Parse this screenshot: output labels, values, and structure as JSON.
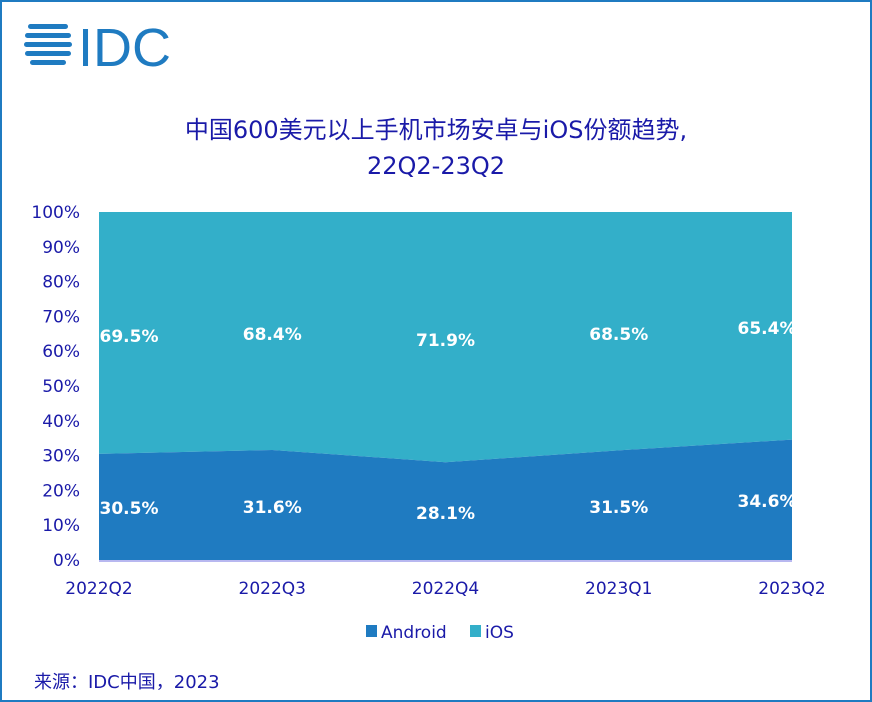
{
  "logo": "IDC",
  "colors": {
    "android": "#1f7bc1",
    "ios": "#33afc9",
    "text": "#1a1aa8",
    "border": "#1f7bc1"
  },
  "chart_data": {
    "type": "area",
    "stacked": true,
    "title_line1": "中国600美元以上手机市场安卓与iOS份额趋势,",
    "title_line2": "22Q2-23Q2",
    "categories": [
      "2022Q2",
      "2022Q3",
      "2022Q4",
      "2023Q1",
      "2023Q2"
    ],
    "series": [
      {
        "name": "Android",
        "values": [
          30.5,
          31.6,
          28.1,
          31.5,
          34.6
        ],
        "labels": [
          "30.5%",
          "31.6%",
          "28.1%",
          "31.5%",
          "34.6%"
        ]
      },
      {
        "name": "iOS",
        "values": [
          69.5,
          68.4,
          71.9,
          68.5,
          65.4
        ],
        "labels": [
          "69.5%",
          "68.4%",
          "71.9%",
          "68.5%",
          "65.4%"
        ]
      }
    ],
    "ylim": [
      0,
      100
    ],
    "yticks": [
      "0%",
      "10%",
      "20%",
      "30%",
      "40%",
      "50%",
      "60%",
      "70%",
      "80%",
      "90%",
      "100%"
    ],
    "legend": "bottom",
    "grid": false
  },
  "source": "来源：IDC中国，2023"
}
